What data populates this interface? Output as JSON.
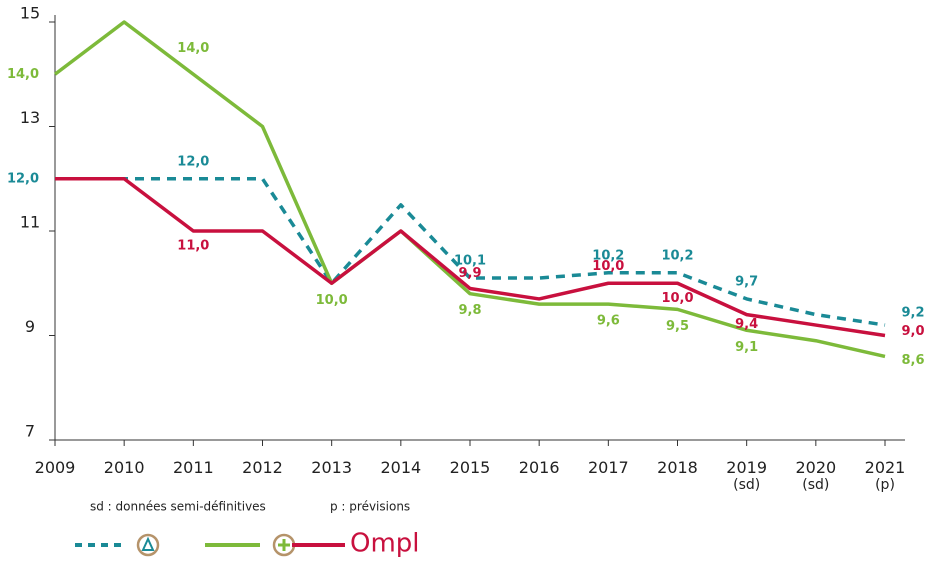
{
  "chart_data": {
    "type": "line",
    "categories": [
      "2009",
      "2010",
      "2011",
      "2012",
      "2013",
      "2014",
      "2015",
      "2016",
      "2017",
      "2018",
      "2019\n(sd)",
      "2020\n(sd)",
      "2021\n(p)"
    ],
    "ylim": [
      7,
      15
    ],
    "yticks": [
      7,
      9,
      11,
      13,
      15
    ],
    "series": [
      {
        "name": null,
        "color": "#1a8a96",
        "dashed": true,
        "values": [
          12.0,
          12.0,
          12.0,
          12.0,
          10.0,
          11.5,
          10.1,
          10.1,
          10.2,
          10.2,
          9.7,
          9.4,
          9.2
        ],
        "value_labels": [
          "12,0",
          null,
          "12,0",
          null,
          null,
          null,
          "10,1",
          null,
          "10,2",
          "10,2",
          "9,7",
          null,
          "9,2"
        ]
      },
      {
        "name": null,
        "color": "#7dba3a",
        "dashed": false,
        "values": [
          14.0,
          15.0,
          14.0,
          13.0,
          10.0,
          11.0,
          9.8,
          9.6,
          9.6,
          9.5,
          9.1,
          8.9,
          8.6
        ],
        "value_labels": [
          "14,0",
          null,
          "14,0",
          null,
          "10,0",
          null,
          "9,8",
          null,
          "9,6",
          "9,5",
          "9,1",
          null,
          "8,6"
        ]
      },
      {
        "name": "Ompl",
        "color": "#c8103e",
        "dashed": false,
        "values": [
          12.0,
          12.0,
          11.0,
          11.0,
          10.0,
          11.0,
          9.9,
          9.7,
          10.0,
          10.0,
          9.4,
          9.2,
          9.0
        ],
        "value_labels": [
          null,
          null,
          "11,0",
          null,
          null,
          null,
          "9,9",
          null,
          "10,0",
          "10,0",
          "9,4",
          null,
          "9,0"
        ]
      }
    ],
    "footnotes": [
      "sd : données semi-définitives",
      "p : prévisions"
    ]
  }
}
